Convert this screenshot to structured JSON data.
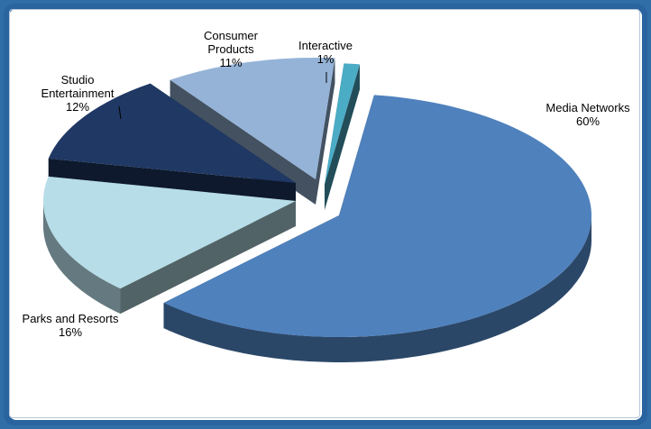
{
  "chart_data": {
    "type": "pie",
    "title": "",
    "slices": [
      {
        "label": "Media Networks",
        "pct_label": "60%",
        "value": 60,
        "color": "#4f81bd"
      },
      {
        "label": "Parks and Resorts",
        "pct_label": "16%",
        "value": 16,
        "color": "#b7dde8"
      },
      {
        "label": "Studio Entertainment",
        "pct_label": "12%",
        "value": 12,
        "color": "#1f3864"
      },
      {
        "label": "Consumer Products",
        "pct_label": "11%",
        "value": 11,
        "color": "#95b3d7"
      },
      {
        "label": "Interactive",
        "pct_label": "1%",
        "value": 1,
        "color": "#4bacc6"
      }
    ]
  }
}
